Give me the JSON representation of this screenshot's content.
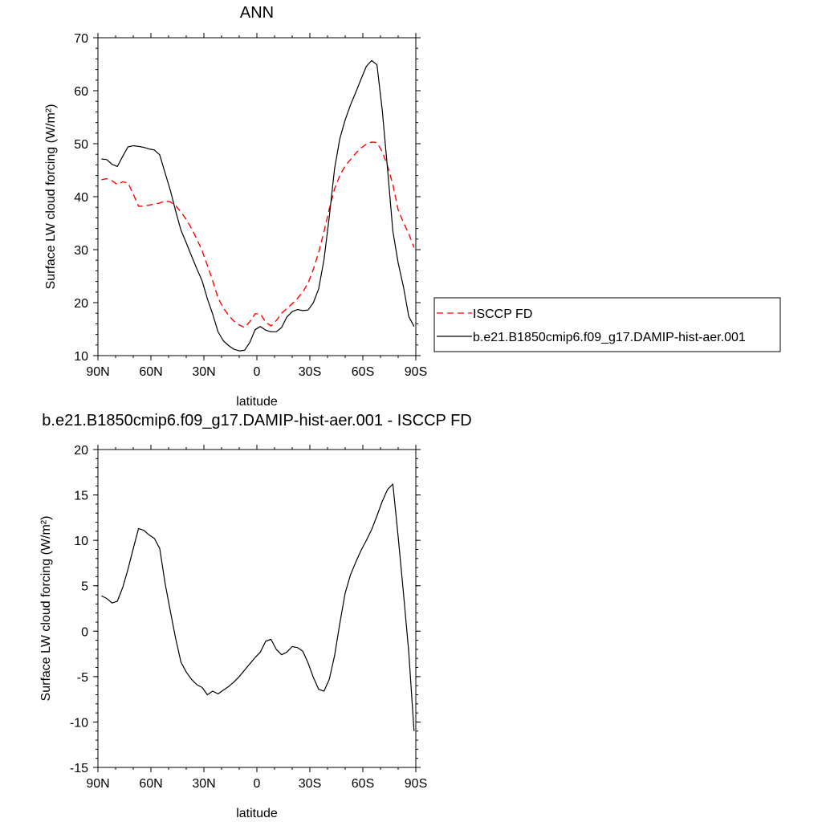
{
  "chart_data": [
    {
      "type": "line",
      "title": "ANN",
      "xlabel": "latitude",
      "ylabel": "Surface LW cloud forcing (W/m²)",
      "xlim": [
        90,
        -90
      ],
      "ylim": [
        10,
        70
      ],
      "x_ticks": [
        {
          "value": 90,
          "label": "90N"
        },
        {
          "value": 60,
          "label": "60N"
        },
        {
          "value": 30,
          "label": "30N"
        },
        {
          "value": 0,
          "label": "0"
        },
        {
          "value": -30,
          "label": "30S"
        },
        {
          "value": -60,
          "label": "60S"
        },
        {
          "value": -90,
          "label": "90S"
        }
      ],
      "y_ticks": [
        10,
        20,
        30,
        40,
        50,
        60,
        70
      ],
      "grid": false,
      "legend": "right",
      "series": [
        {
          "name": "ISCCP FD",
          "color": "#ff0000",
          "dash": "dashed",
          "x": [
            88,
            85,
            82,
            79,
            76,
            73,
            70,
            67,
            64,
            61,
            58,
            55,
            52,
            49,
            46,
            43,
            40,
            37,
            34,
            31,
            28,
            25,
            22,
            19,
            16,
            13,
            10,
            7,
            4,
            1,
            -2,
            -5,
            -8,
            -11,
            -14,
            -17,
            -20,
            -23,
            -26,
            -29,
            -32,
            -35,
            -38,
            -41,
            -44,
            -47,
            -50,
            -53,
            -56,
            -59,
            -62,
            -65,
            -68,
            -71,
            -74,
            -77,
            -80,
            -83,
            -86,
            -89
          ],
          "y": [
            43.2,
            43.4,
            43,
            42.3,
            42.8,
            42.6,
            40.5,
            38.2,
            38.2,
            38.4,
            38.6,
            38.8,
            39.2,
            39.0,
            38.3,
            37.1,
            35.7,
            34,
            32,
            29.8,
            27,
            24.1,
            20.9,
            19,
            17.6,
            16.5,
            15.8,
            15.3,
            16.4,
            17.9,
            17.9,
            16.3,
            15.6,
            16.6,
            18,
            18.9,
            19.8,
            20.8,
            22,
            23.7,
            26.3,
            29.5,
            33.4,
            37.7,
            41.5,
            44,
            45.8,
            47,
            48.2,
            49.2,
            49.9,
            50.3,
            50.2,
            48.5,
            45.8,
            42.3,
            37.5,
            35.1,
            33.0,
            30.4
          ]
        },
        {
          "name": "b.e21.B1850cmip6.f09_g17.DAMIP-hist-aer.001",
          "color": "#000000",
          "dash": "solid",
          "x": [
            88,
            85,
            82,
            79,
            76,
            73,
            70,
            67,
            64,
            61,
            58,
            55,
            52,
            49,
            46,
            43,
            40,
            37,
            34,
            31,
            28,
            25,
            22,
            19,
            16,
            13,
            10,
            7,
            4,
            1,
            -2,
            -5,
            -8,
            -11,
            -14,
            -17,
            -20,
            -23,
            -26,
            -29,
            -32,
            -35,
            -38,
            -41,
            -44,
            -47,
            -50,
            -53,
            -56,
            -59,
            -62,
            -65,
            -68,
            -71,
            -74,
            -77,
            -80,
            -83,
            -86,
            -89
          ],
          "y": [
            47.1,
            47,
            46.1,
            45.7,
            47.6,
            49.4,
            49.6,
            49.5,
            49.3,
            49,
            48.8,
            47.9,
            44.5,
            41.2,
            37.3,
            33.7,
            31.3,
            28.8,
            26.4,
            24.1,
            20.7,
            17.8,
            14.5,
            12.8,
            11.9,
            11.2,
            10.9,
            11,
            12.5,
            14.9,
            15.5,
            14.8,
            14.5,
            14.5,
            15.3,
            17.3,
            18.3,
            18.7,
            18.5,
            18.6,
            20,
            22.6,
            28.1,
            36.2,
            45.3,
            51.0,
            54.5,
            57.3,
            59.7,
            62.2,
            64.6,
            65.7,
            64.9,
            56.3,
            45.2,
            33.5,
            27.5,
            23,
            17.4,
            15.5
          ]
        }
      ]
    },
    {
      "type": "line",
      "title": "b.e21.B1850cmip6.f09_g17.DAMIP-hist-aer.001 - ISCCP FD",
      "xlabel": "latitude",
      "ylabel": "Surface LW cloud forcing (W/m²)",
      "xlim": [
        90,
        -90
      ],
      "ylim": [
        -15,
        20
      ],
      "x_ticks": [
        {
          "value": 90,
          "label": "90N"
        },
        {
          "value": 60,
          "label": "60N"
        },
        {
          "value": 30,
          "label": "30N"
        },
        {
          "value": 0,
          "label": "0"
        },
        {
          "value": -30,
          "label": "30S"
        },
        {
          "value": -60,
          "label": "60S"
        },
        {
          "value": -90,
          "label": "90S"
        }
      ],
      "y_ticks": [
        -15,
        -10,
        -5,
        0,
        5,
        10,
        15,
        20
      ],
      "grid": false,
      "series": [
        {
          "color": "#000000",
          "dash": "solid",
          "x": [
            88,
            85,
            82,
            79,
            76,
            73,
            70,
            67,
            64,
            61,
            58,
            55,
            52,
            49,
            46,
            43,
            40,
            37,
            34,
            31,
            28,
            25,
            22,
            19,
            16,
            13,
            10,
            7,
            4,
            1,
            -2,
            -5,
            -8,
            -11,
            -14,
            -17,
            -20,
            -23,
            -26,
            -29,
            -32,
            -35,
            -38,
            -41,
            -44,
            -47,
            -50,
            -53,
            -56,
            -59,
            -62,
            -65,
            -68,
            -71,
            -74,
            -77,
            -80,
            -83,
            -86,
            -89
          ],
          "y": [
            3.9,
            3.6,
            3.1,
            3.3,
            4.8,
            6.8,
            9.1,
            11.3,
            11.1,
            10.6,
            10.2,
            9.1,
            5.3,
            2.2,
            -0.8,
            -3.4,
            -4.5,
            -5.3,
            -5.9,
            -6.2,
            -7.0,
            -6.6,
            -6.9,
            -6.5,
            -6.1,
            -5.6,
            -5.0,
            -4.3,
            -3.6,
            -2.9,
            -2.3,
            -1.1,
            -0.9,
            -2.0,
            -2.6,
            -2.3,
            -1.7,
            -1.8,
            -2.2,
            -3.5,
            -5.1,
            -6.4,
            -6.6,
            -5.3,
            -2.7,
            0.9,
            4.2,
            6.2,
            7.6,
            8.9,
            10,
            11.2,
            12.7,
            14.3,
            15.6,
            16.2,
            10.4,
            4.2,
            -2.3,
            -11
          ]
        }
      ]
    }
  ]
}
